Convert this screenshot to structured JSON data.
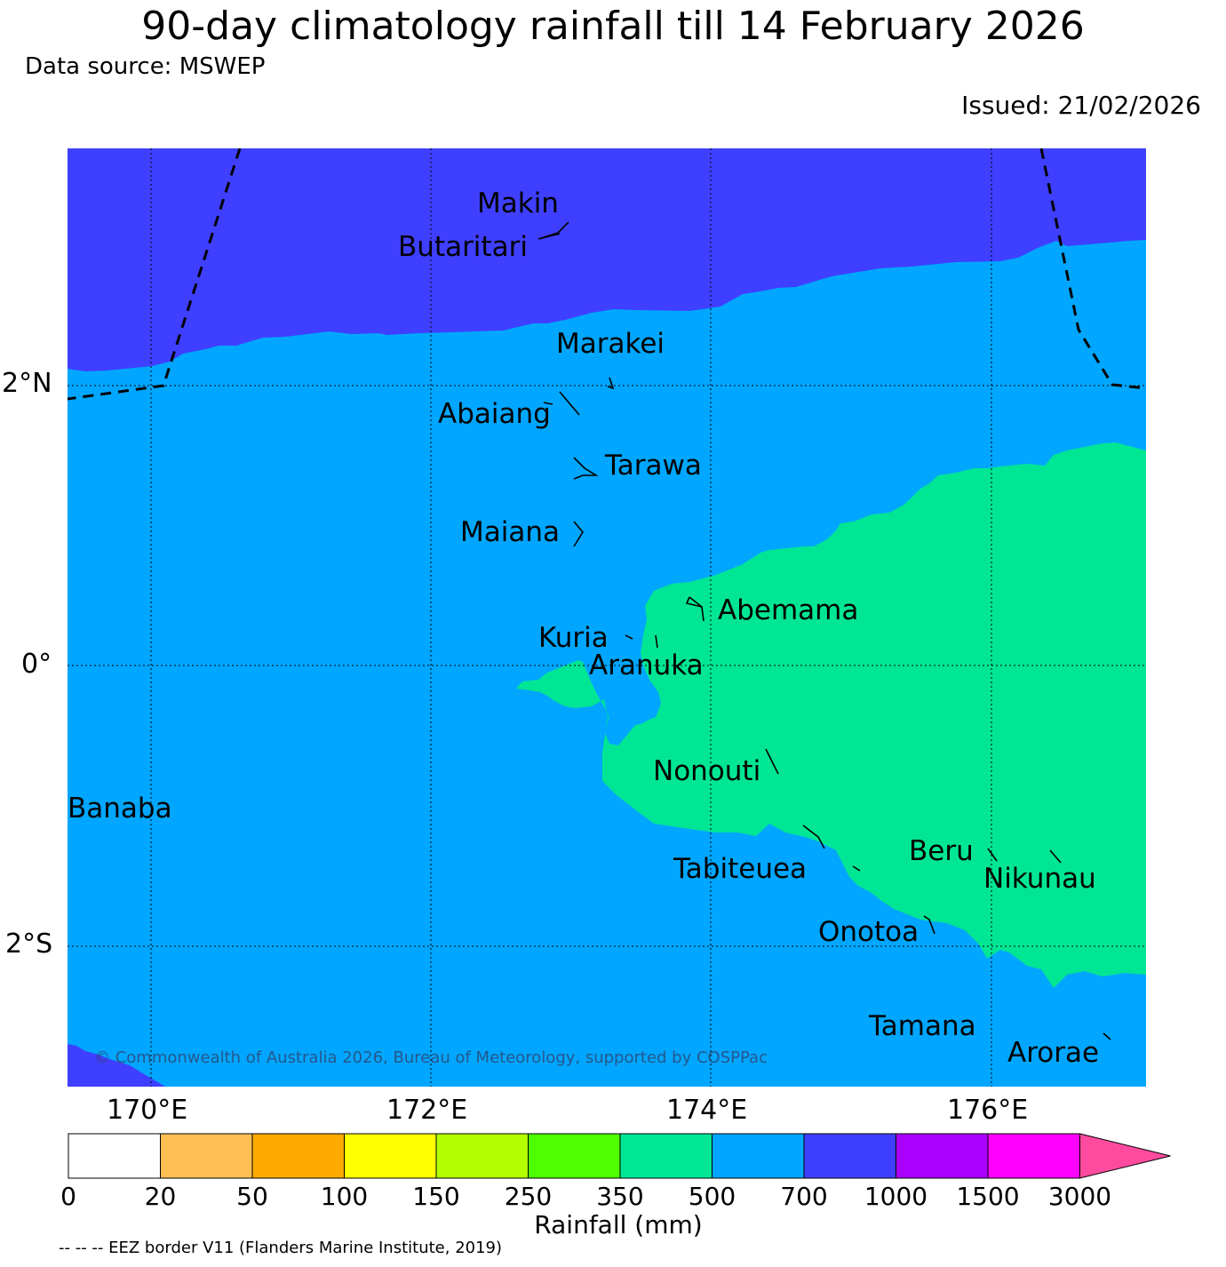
{
  "title": "90-day climatology rainfall till 14 February 2026",
  "data_source": "Data source: MSWEP",
  "issued": "Issued: 21/02/2026",
  "copyright": "© Commonwealth of Australia 2026, Bureau of Meteorology, supported by COSPPac",
  "eez_note": "-- -- -- EEZ border V11 (Flanders Marine Institute, 2019)",
  "axes": {
    "lon_ticks": [
      "170°E",
      "172°E",
      "174°E",
      "176°E"
    ],
    "lat_ticks": [
      "2°N",
      "0°",
      "2°S"
    ]
  },
  "places": [
    "Makin",
    "Butaritari",
    "Marakei",
    "Abaiang",
    "Tarawa",
    "Maiana",
    "Abemama",
    "Kuria",
    "Aranuka",
    "Nonouti",
    "Banaba",
    "Beru",
    "Tabiteuea",
    "Nikunau",
    "Onotoa",
    "Tamana",
    "Arorae"
  ],
  "colorbar": {
    "title": "Rainfall (mm)",
    "labels": [
      "0",
      "20",
      "50",
      "100",
      "150",
      "250",
      "350",
      "500",
      "700",
      "1000",
      "1500",
      "3000"
    ],
    "colors": [
      "#ffffff",
      "#ffbf55",
      "#ffaa00",
      "#ffff00",
      "#b3ff00",
      "#4dff00",
      "#00e695",
      "#00a6ff",
      "#3f3fff",
      "#aa00ff",
      "#ff00ff",
      "#ff4b9f"
    ]
  },
  "fill_colors": {
    "band_350_500": "#00e695",
    "band_500_700": "#00a6ff",
    "band_700_1000": "#3f3fff"
  }
}
